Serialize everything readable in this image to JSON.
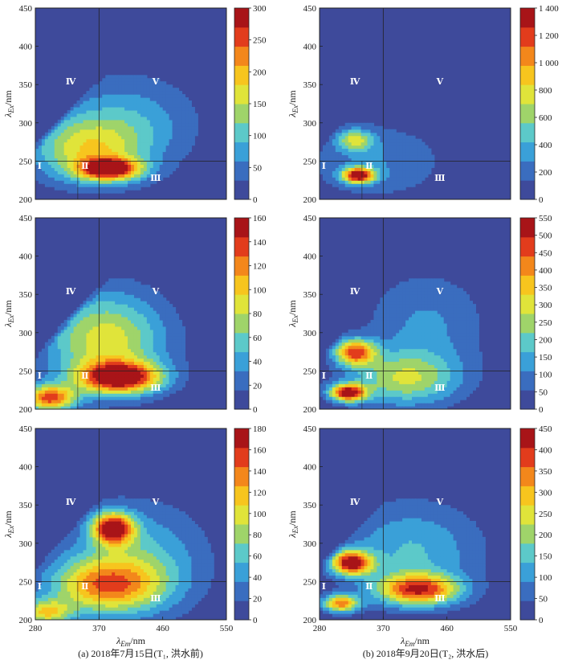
{
  "chart_data": [
    {
      "type": "heatmap",
      "id": "a-top",
      "xlabel_main": "",
      "ylabel_main": "λ",
      "ylabel_sub": "Ex",
      "ylabel_unit": "/nm",
      "xlabel_sub": "",
      "xlabel_unit": "",
      "xticks": [],
      "yticks": [
        "200",
        "250",
        "300",
        "350",
        "400",
        "450"
      ],
      "cbar_ticks": [
        "0",
        "50",
        "100",
        "150",
        "200",
        "250",
        "300"
      ],
      "vmax": 300,
      "regions": [
        "Ⅰ",
        "Ⅱ",
        "Ⅲ",
        "Ⅳ",
        "Ⅴ"
      ],
      "peaks": [
        {
          "em": 385,
          "ex": 240,
          "intensity": 270,
          "sx": 30,
          "sy": 10
        },
        {
          "em": 350,
          "ex": 265,
          "intensity": 140,
          "sx": 55,
          "sy": 30
        },
        {
          "em": 410,
          "ex": 300,
          "intensity": 80,
          "sx": 70,
          "sy": 45
        }
      ]
    },
    {
      "type": "heatmap",
      "id": "b-top",
      "xlabel_main": "",
      "ylabel_main": "λ",
      "ylabel_sub": "Ex",
      "ylabel_unit": "/nm",
      "xticks": [],
      "yticks": [
        "200",
        "250",
        "300",
        "350",
        "400",
        "450"
      ],
      "cbar_ticks": [
        "0",
        "200",
        "400",
        "600",
        "800",
        "1 000",
        "1 200",
        "1 400"
      ],
      "vmax": 1400,
      "regions": [
        "Ⅰ",
        "Ⅱ",
        "Ⅲ",
        "Ⅳ",
        "Ⅴ"
      ],
      "peaks": [
        {
          "em": 335,
          "ex": 232,
          "intensity": 1350,
          "sx": 16,
          "sy": 7
        },
        {
          "em": 330,
          "ex": 278,
          "intensity": 620,
          "sx": 18,
          "sy": 10
        },
        {
          "em": 360,
          "ex": 250,
          "intensity": 280,
          "sx": 70,
          "sy": 35
        }
      ]
    },
    {
      "type": "heatmap",
      "id": "a-mid",
      "xlabel_main": "",
      "ylabel_main": "λ",
      "ylabel_sub": "Ex",
      "ylabel_unit": "/nm",
      "xticks": [],
      "yticks": [
        "200",
        "250",
        "300",
        "350",
        "400",
        "450"
      ],
      "cbar_ticks": [
        "0",
        "20",
        "40",
        "60",
        "80",
        "100",
        "120",
        "140",
        "160"
      ],
      "vmax": 160,
      "regions": [
        "Ⅰ",
        "Ⅱ",
        "Ⅲ",
        "Ⅳ",
        "Ⅴ"
      ],
      "peaks": [
        {
          "em": 400,
          "ex": 242,
          "intensity": 150,
          "sx": 40,
          "sy": 14
        },
        {
          "em": 300,
          "ex": 215,
          "intensity": 130,
          "sx": 25,
          "sy": 12
        },
        {
          "em": 380,
          "ex": 290,
          "intensity": 90,
          "sx": 60,
          "sy": 45
        }
      ]
    },
    {
      "type": "heatmap",
      "id": "b-mid",
      "xlabel_main": "",
      "ylabel_main": "λ",
      "ylabel_sub": "Ex",
      "ylabel_unit": "/nm",
      "xticks": [],
      "yticks": [
        "200",
        "250",
        "300",
        "350",
        "400",
        "450"
      ],
      "cbar_ticks": [
        "0",
        "50",
        "100",
        "150",
        "200",
        "250",
        "300",
        "350",
        "400",
        "450",
        "500",
        "550"
      ],
      "vmax": 550,
      "regions": [
        "Ⅰ",
        "Ⅱ",
        "Ⅲ",
        "Ⅳ",
        "Ⅴ"
      ],
      "peaks": [
        {
          "em": 320,
          "ex": 222,
          "intensity": 520,
          "sx": 18,
          "sy": 8
        },
        {
          "em": 330,
          "ex": 275,
          "intensity": 430,
          "sx": 20,
          "sy": 12
        },
        {
          "em": 400,
          "ex": 240,
          "intensity": 250,
          "sx": 55,
          "sy": 25
        },
        {
          "em": 430,
          "ex": 310,
          "intensity": 120,
          "sx": 60,
          "sy": 50
        }
      ]
    },
    {
      "type": "heatmap",
      "id": "a-bot",
      "xlabel_main": "λ",
      "xlabel_sub": "Em",
      "xlabel_unit": "/nm",
      "ylabel_main": "λ",
      "ylabel_sub": "Ex",
      "ylabel_unit": "/nm",
      "xticks": [
        "280",
        "370",
        "460",
        "550"
      ],
      "yticks": [
        "200",
        "250",
        "300",
        "350",
        "400",
        "450"
      ],
      "cbar_ticks": [
        "0",
        "20",
        "40",
        "60",
        "80",
        "100",
        "120",
        "140",
        "160",
        "180"
      ],
      "vmax": 180,
      "regions": [
        "Ⅰ",
        "Ⅱ",
        "Ⅲ",
        "Ⅳ",
        "Ⅴ"
      ],
      "peaks": [
        {
          "em": 390,
          "ex": 320,
          "intensity": 170,
          "sx": 20,
          "sy": 14
        },
        {
          "em": 380,
          "ex": 245,
          "intensity": 115,
          "sx": 55,
          "sy": 25
        },
        {
          "em": 295,
          "ex": 210,
          "intensity": 100,
          "sx": 25,
          "sy": 12
        },
        {
          "em": 420,
          "ex": 280,
          "intensity": 60,
          "sx": 70,
          "sy": 50
        }
      ]
    },
    {
      "type": "heatmap",
      "id": "b-bot",
      "xlabel_main": "λ",
      "xlabel_sub": "Em",
      "xlabel_unit": "/nm",
      "ylabel_main": "λ",
      "ylabel_sub": "Ex",
      "ylabel_unit": "/nm",
      "xticks": [
        "280",
        "370",
        "460",
        "550"
      ],
      "yticks": [
        "200",
        "250",
        "300",
        "350",
        "400",
        "450"
      ],
      "cbar_ticks": [
        "0",
        "50",
        "100",
        "150",
        "200",
        "250",
        "300",
        "350",
        "400",
        "450"
      ],
      "vmax": 450,
      "regions": [
        "Ⅰ",
        "Ⅱ",
        "Ⅲ",
        "Ⅳ",
        "Ⅴ"
      ],
      "peaks": [
        {
          "em": 325,
          "ex": 275,
          "intensity": 430,
          "sx": 20,
          "sy": 11
        },
        {
          "em": 420,
          "ex": 240,
          "intensity": 360,
          "sx": 40,
          "sy": 14
        },
        {
          "em": 310,
          "ex": 222,
          "intensity": 330,
          "sx": 18,
          "sy": 8
        },
        {
          "em": 410,
          "ex": 290,
          "intensity": 140,
          "sx": 70,
          "sy": 45
        }
      ]
    }
  ],
  "axis": {
    "em_min": 280,
    "em_max": 550,
    "ex_min": 200,
    "ex_max": 450,
    "divider_em": 370,
    "divider_ex": 250,
    "divider_em_left": 340
  },
  "captions": {
    "a": "(a)  2018年7月15日(T₁, 洪水前)",
    "b": "(b)  2018年9月20日(T₂, 洪水后)"
  },
  "colors": {
    "low": "#3e4a9b",
    "scale": [
      "#3e4a9b",
      "#3a6dbf",
      "#3aa0d8",
      "#5cc9c9",
      "#9fd46a",
      "#e0e43a",
      "#f7c51e",
      "#f3871b",
      "#e23c1c",
      "#a81418"
    ]
  }
}
